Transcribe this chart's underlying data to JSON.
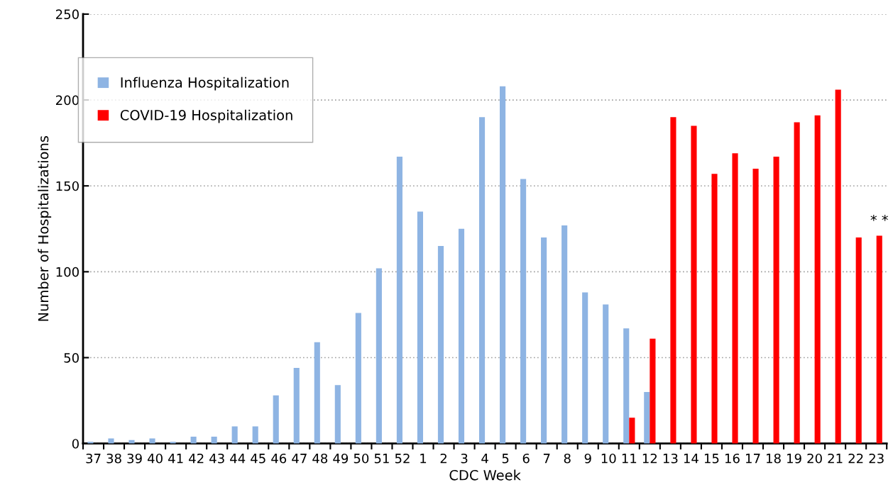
{
  "chart_data": {
    "type": "bar",
    "xlabel": "CDC Week",
    "ylabel": "Number of Hospitalizations",
    "categories": [
      "37",
      "38",
      "39",
      "40",
      "41",
      "42",
      "43",
      "44",
      "45",
      "46",
      "47",
      "48",
      "49",
      "50",
      "51",
      "52",
      "1",
      "2",
      "3",
      "4",
      "5",
      "6",
      "7",
      "8",
      "9",
      "10",
      "11",
      "12",
      "13",
      "14",
      "15",
      "16",
      "17",
      "18",
      "19",
      "20",
      "21",
      "22",
      "23"
    ],
    "series": [
      {
        "name": "Influenza Hospitalization",
        "color": "#8eb4e3",
        "values": [
          1,
          3,
          2,
          3,
          1,
          4,
          4,
          10,
          10,
          28,
          44,
          59,
          34,
          76,
          102,
          167,
          135,
          115,
          125,
          190,
          208,
          154,
          120,
          127,
          88,
          81,
          67,
          30,
          null,
          null,
          null,
          null,
          null,
          null,
          null,
          null,
          null,
          null,
          null
        ]
      },
      {
        "name": "COVID-19 Hospitalization",
        "color": "#ff0000",
        "values": [
          null,
          null,
          null,
          null,
          null,
          null,
          null,
          null,
          null,
          null,
          null,
          null,
          null,
          null,
          null,
          null,
          null,
          null,
          null,
          null,
          null,
          null,
          null,
          null,
          null,
          null,
          15,
          61,
          190,
          185,
          157,
          169,
          160,
          167,
          187,
          191,
          206,
          120,
          121
        ]
      }
    ],
    "ylim": [
      0,
      250
    ],
    "yticks": [
      0,
      50,
      100,
      150,
      200,
      250
    ],
    "grid": "y",
    "legend": "top left",
    "annotations": [
      {
        "text": "* *",
        "x": "23",
        "y": 121
      }
    ]
  }
}
